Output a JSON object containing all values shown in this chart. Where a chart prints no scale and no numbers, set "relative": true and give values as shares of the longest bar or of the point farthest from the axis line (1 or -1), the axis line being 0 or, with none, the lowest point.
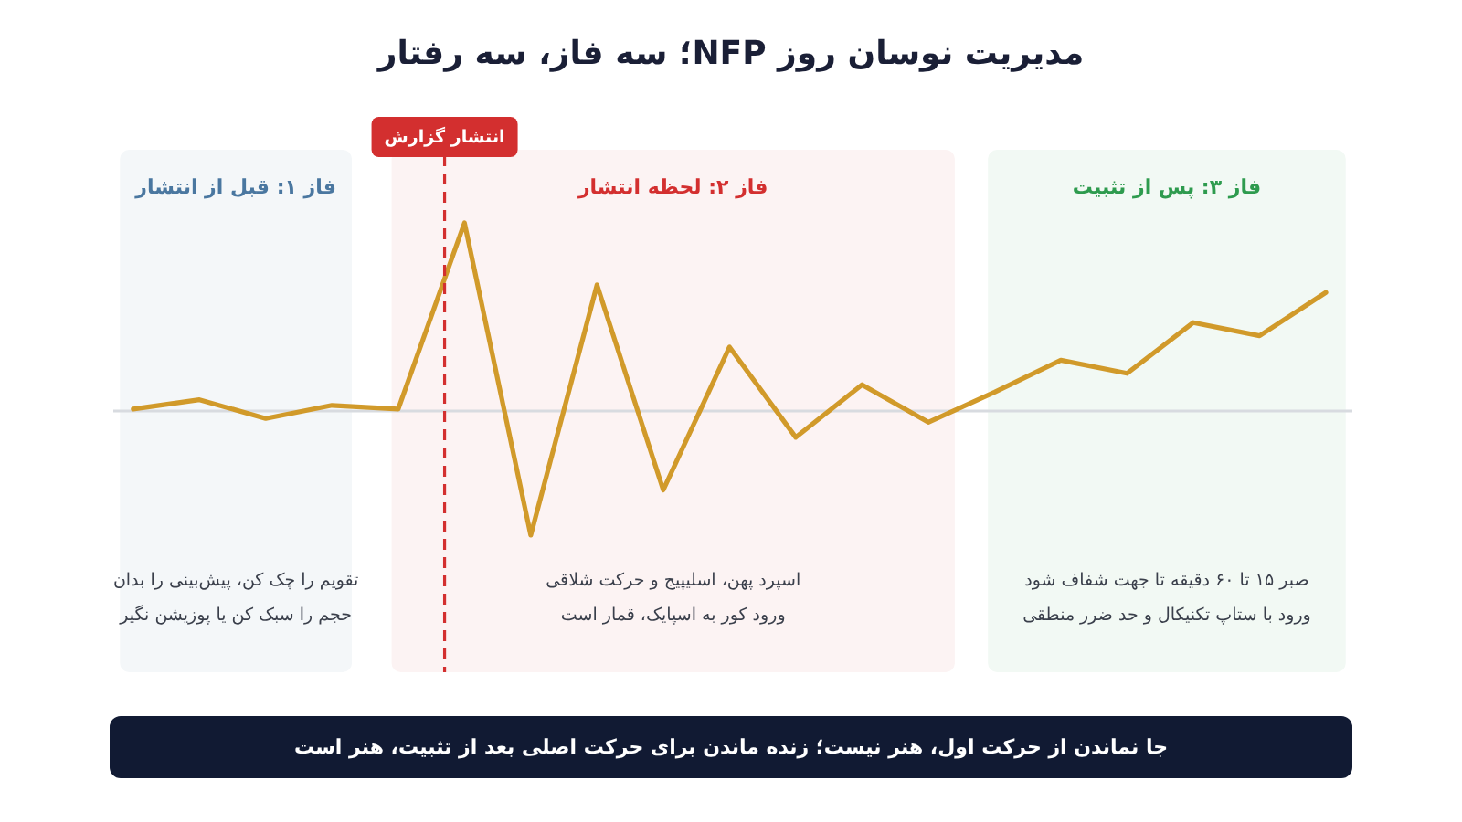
{
  "chart_data": {
    "type": "line",
    "title": "مدیریت نوسان روز NFP؛ سه فاز، سه رفتار",
    "relative": true,
    "marker": "none",
    "line_style": "solid",
    "color": "#d19a2a",
    "categories": [
      null,
      null,
      null,
      null,
      null,
      null,
      null,
      null,
      null,
      null,
      null,
      null,
      null,
      null,
      null,
      null,
      null,
      null,
      null
    ],
    "values": [
      0.01,
      0.06,
      -0.04,
      0.03,
      0.01,
      1,
      -0.66,
      0.67,
      -0.42,
      0.34,
      -0.14,
      0.14,
      -0.06,
      0.1,
      0.27,
      0.2,
      0.47,
      0.4,
      0.63
    ],
    "annotations": [
      "فاز ۱: قبل از انتشار",
      "تقویم را چک کن، پیش‌بینی را بدان",
      "حجم را سبک کن یا پوزیشن نگیر",
      "فاز ۲: لحظه انتشار",
      "اسپرد پهن، اسلیپیج و حرکت شلاقی",
      "ورود کور به اسپایک، قمار است",
      "فاز ۳: پس از تثبیت",
      "صبر ۱۵ تا ۶۰ دقیقه تا جهت شفاف شود",
      "ورود با ستاپ تکنیکال و حد ضرر منطقی",
      "انتشار گزارش",
      "جا نماندن از حرکت اول، هنر نیست؛ زنده ماندن برای حرکت اصلی بعد از تثبیت، هنر است"
    ]
  }
}
